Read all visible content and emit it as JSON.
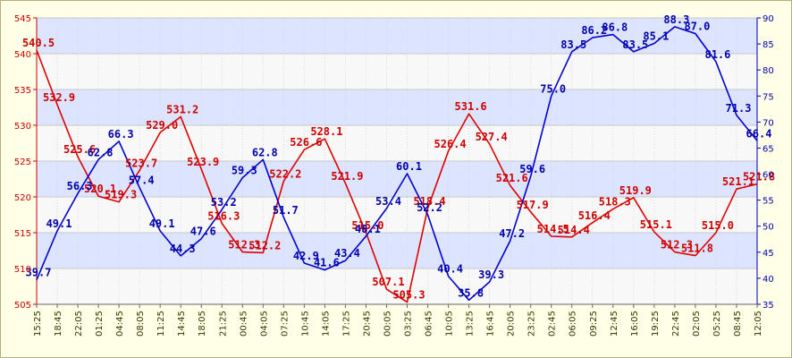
{
  "chart_data": {
    "type": "line",
    "categories": [
      "15:25",
      "18:45",
      "22:05",
      "01:25",
      "04:45",
      "08:05",
      "11:25",
      "14:45",
      "18:05",
      "21:25",
      "00:45",
      "04:05",
      "07:25",
      "10:45",
      "14:05",
      "17:25",
      "20:45",
      "00:05",
      "03:25",
      "06:45",
      "10:05",
      "13:25",
      "16:45",
      "20:05",
      "23:25",
      "02:45",
      "06:05",
      "09:25",
      "12:45",
      "16:05",
      "19:25",
      "22:45",
      "02:05",
      "05:25",
      "08:45",
      "12:05"
    ],
    "series": [
      {
        "axis": "left",
        "color": "#dd0000",
        "values": [
          540.5,
          532.9,
          525.6,
          520.1,
          519.3,
          523.7,
          529.0,
          531.2,
          523.9,
          516.3,
          512.3,
          512.2,
          522.2,
          526.6,
          528.1,
          521.9,
          515.0,
          507.1,
          505.3,
          518.4,
          526.4,
          531.6,
          527.4,
          521.6,
          517.9,
          514.5,
          514.4,
          516.4,
          518.3,
          519.9,
          515.1,
          512.3,
          511.8,
          515.0,
          521.1,
          521.8
        ]
      },
      {
        "axis": "right",
        "color": "#0000cc",
        "values": [
          39.7,
          49.1,
          56.3,
          62.8,
          66.3,
          57.4,
          49.1,
          44.3,
          47.6,
          53.2,
          59.3,
          62.8,
          51.7,
          42.9,
          41.6,
          43.4,
          48.1,
          53.4,
          60.1,
          52.2,
          40.4,
          35.8,
          39.3,
          47.2,
          59.6,
          75.0,
          83.5,
          86.2,
          86.8,
          83.5,
          85.1,
          88.3,
          87.0,
          81.6,
          71.3,
          66.4
        ]
      }
    ],
    "left_axis": {
      "ylim": [
        505,
        545
      ],
      "ticks": [
        "505",
        "510",
        "515",
        "520",
        "525",
        "530",
        "535",
        "540",
        "545"
      ]
    },
    "right_axis": {
      "ylim": [
        35,
        90
      ],
      "ticks": [
        "35",
        "40",
        "45",
        "50",
        "55",
        "60",
        "65",
        "70",
        "75",
        "80",
        "85",
        "90"
      ]
    },
    "grid": true,
    "colors": {
      "background": "#ffffe8",
      "band_light": "#f8f8f8",
      "band_dark": "#dde4ff",
      "red": "#dd0000",
      "blue": "#0000cc"
    }
  }
}
